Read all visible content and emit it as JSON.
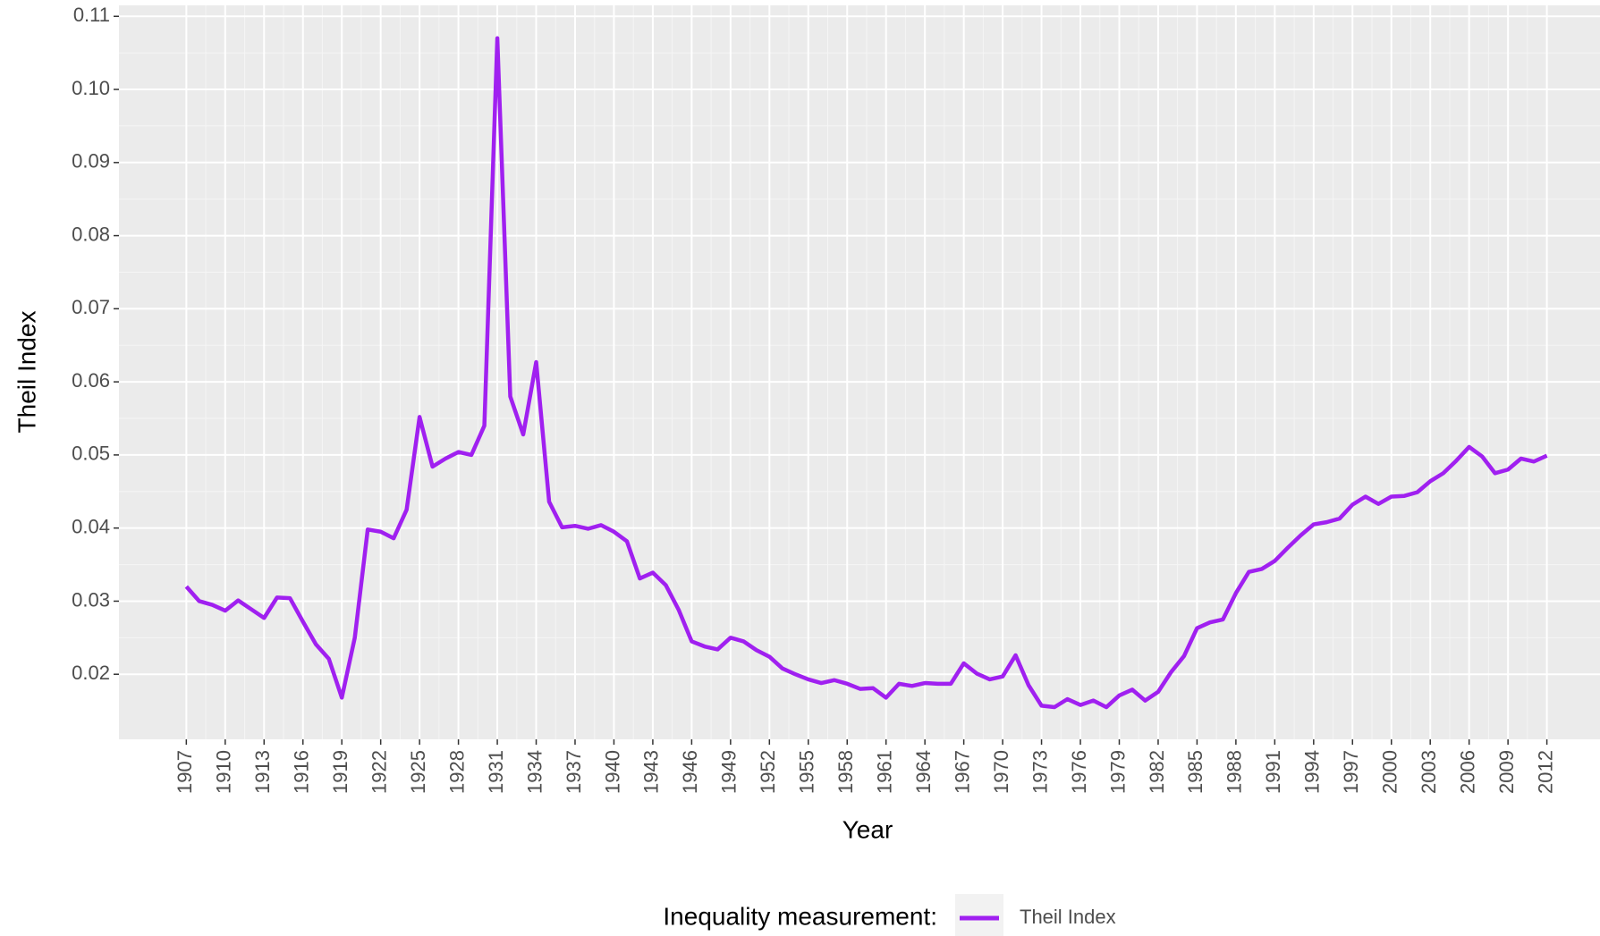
{
  "chart_data": {
    "type": "line",
    "xlabel": "Year",
    "ylabel": "Theil Index",
    "legend_title": "Inequality measurement:",
    "legend_position": "bottom",
    "grid": true,
    "x": [
      1907,
      1908,
      1909,
      1910,
      1911,
      1912,
      1913,
      1914,
      1915,
      1916,
      1917,
      1918,
      1919,
      1920,
      1921,
      1922,
      1923,
      1924,
      1925,
      1926,
      1927,
      1928,
      1929,
      1930,
      1931,
      1932,
      1933,
      1934,
      1935,
      1936,
      1937,
      1938,
      1939,
      1940,
      1941,
      1942,
      1943,
      1944,
      1945,
      1946,
      1947,
      1948,
      1949,
      1950,
      1951,
      1952,
      1953,
      1954,
      1955,
      1956,
      1957,
      1958,
      1959,
      1960,
      1961,
      1962,
      1963,
      1964,
      1965,
      1966,
      1967,
      1968,
      1969,
      1970,
      1971,
      1972,
      1973,
      1974,
      1975,
      1976,
      1977,
      1978,
      1979,
      1980,
      1981,
      1982,
      1983,
      1984,
      1985,
      1986,
      1987,
      1988,
      1989,
      1990,
      1991,
      1992,
      1993,
      1994,
      1995,
      1996,
      1997,
      1998,
      1999,
      2000,
      2001,
      2002,
      2003,
      2004,
      2005,
      2006,
      2007,
      2008,
      2009,
      2010,
      2011,
      2012
    ],
    "series": [
      {
        "name": "Theil Index",
        "color": "#a020f0",
        "values": [
          0.032,
          0.03,
          0.0295,
          0.0287,
          0.0301,
          0.0289,
          0.0277,
          0.0305,
          0.0304,
          0.0272,
          0.0241,
          0.0221,
          0.0168,
          0.025,
          0.0398,
          0.0395,
          0.0386,
          0.0425,
          0.0552,
          0.0484,
          0.0495,
          0.0504,
          0.05,
          0.054,
          0.107,
          0.058,
          0.0528,
          0.0627,
          0.0436,
          0.0401,
          0.0403,
          0.0399,
          0.0404,
          0.0395,
          0.0382,
          0.0331,
          0.0339,
          0.0322,
          0.0288,
          0.0245,
          0.0238,
          0.0234,
          0.025,
          0.0245,
          0.0233,
          0.0224,
          0.0208,
          0.02,
          0.0193,
          0.0188,
          0.0192,
          0.0187,
          0.018,
          0.0181,
          0.0168,
          0.0187,
          0.0184,
          0.0188,
          0.0187,
          0.0187,
          0.0215,
          0.0201,
          0.0193,
          0.0197,
          0.0226,
          0.0185,
          0.0157,
          0.0155,
          0.0166,
          0.0158,
          0.0164,
          0.0155,
          0.0171,
          0.0179,
          0.0164,
          0.0176,
          0.0203,
          0.0225,
          0.0263,
          0.0271,
          0.0275,
          0.0311,
          0.034,
          0.0344,
          0.0355,
          0.0373,
          0.039,
          0.0405,
          0.0408,
          0.0413,
          0.0432,
          0.0443,
          0.0433,
          0.0443,
          0.0444,
          0.0449,
          0.0464,
          0.0475,
          0.0492,
          0.0511,
          0.0498,
          0.0475,
          0.048,
          0.0495,
          0.0491,
          0.0499
        ]
      }
    ],
    "xlim": [
      1901.8,
      2016.1
    ],
    "xticks": [
      1907,
      1910,
      1913,
      1916,
      1919,
      1922,
      1925,
      1928,
      1931,
      1934,
      1937,
      1940,
      1943,
      1946,
      1949,
      1952,
      1955,
      1958,
      1961,
      1964,
      1967,
      1970,
      1973,
      1976,
      1979,
      1982,
      1985,
      1988,
      1991,
      1994,
      1997,
      2000,
      2003,
      2006,
      2009,
      2012
    ],
    "ylim": [
      0.0111,
      0.1115
    ],
    "yticks": [
      0.02,
      0.03,
      0.04,
      0.05,
      0.06,
      0.07,
      0.08,
      0.09,
      {
        "value": 0.1,
        "label": "0.10"
      },
      0.11
    ]
  }
}
